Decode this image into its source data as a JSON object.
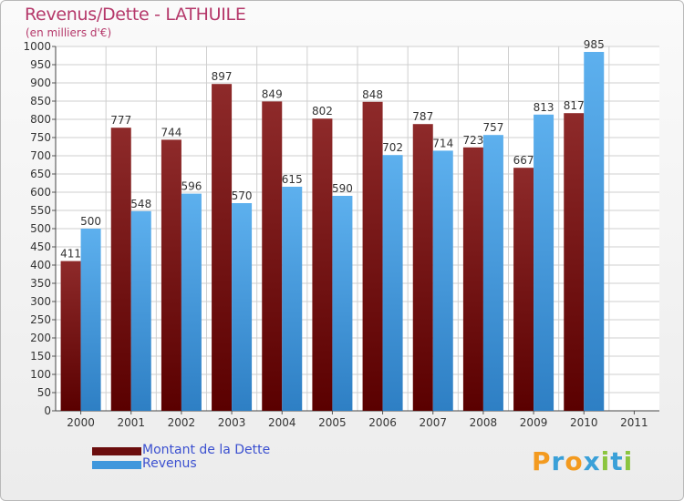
{
  "header": {
    "title": "Revenus/Dette - LATHUILE",
    "subtitle": "(en milliers d'€)"
  },
  "colors": {
    "debt": "#8b1a1a",
    "revenue": "#4da3e6",
    "title": "#b5386a",
    "legend_text": "#3b50d0"
  },
  "legend": [
    {
      "label": "Montant de la Dette",
      "color": "#6b0d0d"
    },
    {
      "label": "Revenus",
      "color": "#3f97dc"
    }
  ],
  "logo": {
    "text": "Proxiti",
    "letters": [
      {
        "ch": "P",
        "color": "#f39a1f"
      },
      {
        "ch": "r",
        "color": "#3aa0d8"
      },
      {
        "ch": "o",
        "color": "#f39a1f"
      },
      {
        "ch": "x",
        "color": "#3aa0d8"
      },
      {
        "ch": "i",
        "color": "#8bc53f"
      },
      {
        "ch": "t",
        "color": "#3aa0d8"
      },
      {
        "ch": "i",
        "color": "#8bc53f"
      }
    ]
  },
  "chart_data": {
    "type": "bar",
    "categories": [
      "2000",
      "2001",
      "2002",
      "2003",
      "2004",
      "2005",
      "2006",
      "2007",
      "2008",
      "2009",
      "2010",
      "2011"
    ],
    "series": [
      {
        "name": "Montant de la Dette",
        "values": [
          411,
          777,
          744,
          897,
          849,
          802,
          848,
          787,
          723,
          667,
          817,
          null
        ]
      },
      {
        "name": "Revenus",
        "values": [
          500,
          548,
          596,
          570,
          615,
          590,
          702,
          714,
          757,
          813,
          985,
          null
        ]
      }
    ],
    "ylim": [
      0,
      1000
    ],
    "yticks": [
      0,
      50,
      100,
      150,
      200,
      250,
      300,
      350,
      400,
      450,
      500,
      550,
      600,
      650,
      700,
      750,
      800,
      850,
      900,
      950,
      1000
    ],
    "grid": true
  }
}
